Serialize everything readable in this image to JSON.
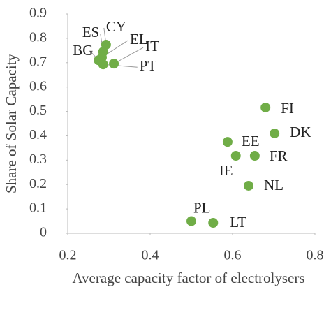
{
  "chart_data": {
    "type": "scatter",
    "xlabel": "Average capacity factor of electrolysers",
    "ylabel": "Share of Solar Capacity",
    "color": "#70ad47",
    "xlim": [
      0.2,
      0.8
    ],
    "xticks": [
      0.2,
      0.4,
      0.6,
      0.8
    ],
    "ylim": [
      0,
      0.9
    ],
    "yticks": [
      0,
      0.1,
      0.2,
      0.3,
      0.4,
      0.5,
      0.6,
      0.7,
      0.8,
      0.9
    ],
    "labels": [
      "FI",
      "DK",
      "EE",
      "IE",
      "FR",
      "NL",
      "PL",
      "LT",
      "CY",
      "ES",
      "EL",
      "BG",
      "IT",
      "PT"
    ],
    "x": [
      0.68,
      0.702,
      0.588,
      0.608,
      0.654,
      0.639,
      0.5,
      0.553,
      0.293,
      0.286,
      0.283,
      0.275,
      0.312,
      0.286
    ],
    "values": [
      0.516,
      0.41,
      0.375,
      0.318,
      0.318,
      0.195,
      0.05,
      0.043,
      0.774,
      0.745,
      0.722,
      0.71,
      0.696,
      0.693
    ]
  }
}
